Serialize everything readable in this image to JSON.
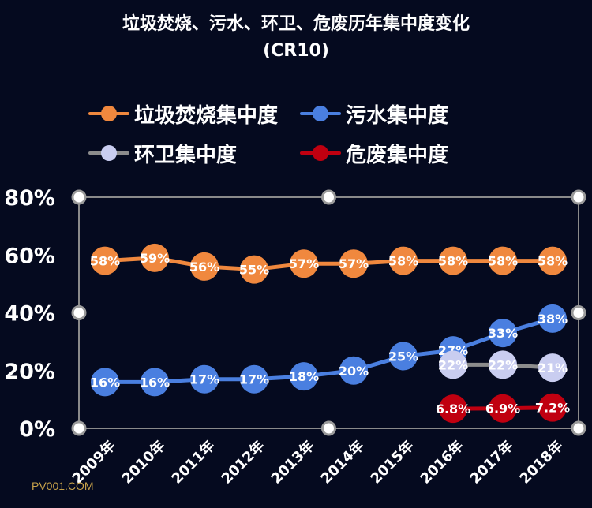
{
  "title_line1": "垃圾焚烧、污水、环卫、危废历年集中度变化",
  "title_line2": "(CR10)",
  "watermark": "PV001.COM",
  "chart_data": {
    "type": "line",
    "title": "垃圾焚烧、污水、环卫、危废历年集中度变化 (CR10)",
    "categories": [
      "2009年",
      "2010年",
      "2011年",
      "2012年",
      "2013年",
      "2014年",
      "2015年",
      "2016年",
      "2017年",
      "2018年"
    ],
    "ylim": [
      0,
      80
    ],
    "yticks": [
      "0%",
      "20%",
      "40%",
      "60%",
      "80%"
    ],
    "ytick_values": [
      0,
      20,
      40,
      60,
      80
    ],
    "grid": false,
    "legend_position": "top",
    "series": [
      {
        "name": "垃圾焚烧集中度",
        "color": "#f0883e",
        "values": [
          58,
          59,
          56,
          55,
          57,
          57,
          58,
          58,
          58,
          58
        ],
        "labels": [
          "58%",
          "59%",
          "56%",
          "55%",
          "57%",
          "57%",
          "58%",
          "58%",
          "58%",
          "58%"
        ]
      },
      {
        "name": "污水集中度",
        "color": "#4a7fe0",
        "values": [
          16,
          16,
          17,
          17,
          18,
          20,
          25,
          27,
          33,
          38
        ],
        "labels": [
          "16%",
          "16%",
          "17%",
          "17%",
          "18%",
          "20%",
          "25%",
          "27%",
          "33%",
          "38%"
        ]
      },
      {
        "name": "环卫集中度",
        "color": "#c9cdf0",
        "line_color": "#8c8c8c",
        "values": [
          null,
          null,
          null,
          null,
          null,
          null,
          null,
          22,
          22,
          21
        ],
        "labels": [
          null,
          null,
          null,
          null,
          null,
          null,
          null,
          "22%",
          "22%",
          "21%"
        ]
      },
      {
        "name": "危废集中度",
        "color": "#c00010",
        "values": [
          null,
          null,
          null,
          null,
          null,
          null,
          null,
          6.8,
          6.9,
          7.2
        ],
        "labels": [
          null,
          null,
          null,
          null,
          null,
          null,
          null,
          "6.8%",
          "6.9%",
          "7.2%"
        ]
      }
    ]
  }
}
